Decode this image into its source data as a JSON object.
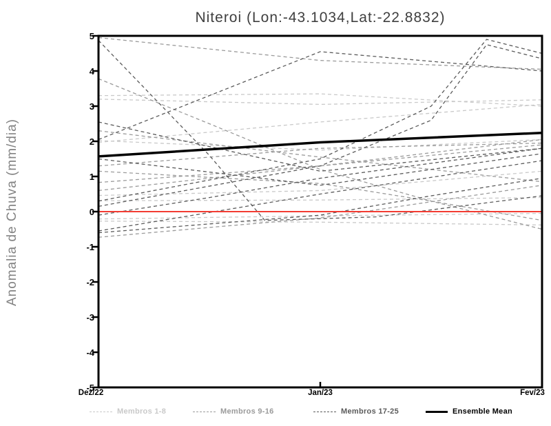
{
  "title": "Niteroi (Lon:-43.1034,Lat:-22.8832)",
  "y_axis": {
    "label": "Anomalia de Chuva (mm/dia)",
    "ticks": [
      "5",
      "4",
      "3",
      "2",
      "1",
      "0",
      "-1",
      "-2",
      "-3",
      "-4",
      "-5"
    ],
    "tick_values": [
      5,
      4,
      3,
      2,
      1,
      0,
      -1,
      -2,
      -3,
      -4,
      -5
    ]
  },
  "x_axis": {
    "ticks": [
      "Dez/22",
      "Jan/23",
      "Fev/23"
    ],
    "tick_positions_months": [
      0,
      1,
      2
    ]
  },
  "colors": {
    "frame": "#000000",
    "zero_line": "#f23b32",
    "mean": "#000000",
    "members_1_8": "#c9c9c9",
    "members_9_16": "#9a9a9a",
    "members_17_25": "#5a5a5a"
  },
  "legend": {
    "entries": [
      {
        "label": "Membros 1-8",
        "color": "#c9c9c9",
        "style": "dashed",
        "x": 130
      },
      {
        "label": "Membros 9-16",
        "color": "#9a9a9a",
        "style": "dashed",
        "x": 280
      },
      {
        "label": "Membros 17-25",
        "color": "#5a5a5a",
        "style": "dashed",
        "x": 455
      },
      {
        "label": "Ensemble Mean",
        "color": "#000000",
        "style": "solid",
        "x": 618
      }
    ]
  },
  "chart_data": {
    "type": "line",
    "title": "Niteroi (Lon:-43.1034,Lat:-22.8832)",
    "xlabel": "",
    "ylabel": "Anomalia de Chuva (mm/dia)",
    "ylim": [
      -5,
      5
    ],
    "x_categories": [
      "Dez/22",
      "Jan/23",
      "Fev/23"
    ],
    "x_unit": "months from Dez/22 (0=Dez/22, 1=Jan/23, 2=Fev/23)",
    "grid": false,
    "legend_position": "bottom",
    "zero_line": {
      "value": 0,
      "color": "#f23b32",
      "style": "solid"
    },
    "ensemble_mean": {
      "name": "Ensemble Mean",
      "color": "#000000",
      "style": "solid",
      "points": [
        [
          0,
          1.57
        ],
        [
          1,
          1.97
        ],
        [
          2,
          2.24
        ]
      ]
    },
    "groups": [
      {
        "name": "Membros 1-8",
        "color": "#c9c9c9",
        "style": "dashed",
        "members": [
          [
            [
              0,
              3.3
            ],
            [
              1,
              3.35
            ],
            [
              2,
              3.0
            ]
          ],
          [
            [
              0,
              3.2
            ],
            [
              1,
              3.05
            ],
            [
              2,
              3.18
            ]
          ],
          [
            [
              0,
              1.97
            ],
            [
              1,
              2.55
            ],
            [
              2,
              3.05
            ]
          ],
          [
            [
              0,
              2.02
            ],
            [
              1,
              1.75
            ],
            [
              2,
              2.05
            ]
          ],
          [
            [
              0,
              0.46
            ],
            [
              1,
              0.6
            ],
            [
              2,
              1.15
            ]
          ],
          [
            [
              0,
              0.31
            ],
            [
              1,
              0.33
            ],
            [
              2,
              0.4
            ]
          ],
          [
            [
              0,
              -0.21
            ],
            [
              1,
              -0.12
            ],
            [
              2,
              -0.05
            ]
          ],
          [
            [
              0,
              -0.27
            ],
            [
              1,
              -0.3
            ],
            [
              2,
              -0.38
            ]
          ]
        ]
      },
      {
        "name": "Membros 9-16",
        "color": "#9a9a9a",
        "style": "dashed",
        "members": [
          [
            [
              0,
              4.95
            ],
            [
              1,
              4.3
            ],
            [
              2,
              4.05
            ]
          ],
          [
            [
              0,
              3.78
            ],
            [
              0.5,
              2.5
            ],
            [
              1,
              1.2
            ],
            [
              1.5,
              0.3
            ],
            [
              2,
              -0.5
            ]
          ],
          [
            [
              0,
              2.3
            ],
            [
              1,
              1.55
            ],
            [
              2,
              0.85
            ]
          ],
          [
            [
              0,
              1.3
            ],
            [
              1,
              1.8
            ],
            [
              2,
              1.95
            ]
          ],
          [
            [
              0,
              1.15
            ],
            [
              1,
              0.8
            ],
            [
              1.5,
              0.3
            ],
            [
              2,
              -0.25
            ]
          ],
          [
            [
              0,
              0.83
            ],
            [
              1,
              1.3
            ],
            [
              2,
              1.9
            ]
          ],
          [
            [
              0,
              0.6
            ],
            [
              1,
              1.3
            ],
            [
              2,
              2.05
            ]
          ],
          [
            [
              0,
              -0.73
            ],
            [
              0.5,
              -0.45
            ],
            [
              1,
              -0.18
            ],
            [
              1.2,
              0.0
            ],
            [
              2,
              0.75
            ]
          ]
        ]
      },
      {
        "name": "Membros 17-25",
        "color": "#5a5a5a",
        "style": "dashed",
        "members": [
          [
            [
              0,
              4.87
            ],
            [
              0.5,
              1.6
            ],
            [
              0.75,
              -0.25
            ],
            [
              1.25,
              -0.15
            ],
            [
              2,
              0.45
            ]
          ],
          [
            [
              0,
              2.05
            ],
            [
              1,
              4.55
            ],
            [
              2,
              4.0
            ]
          ],
          [
            [
              0,
              2.55
            ],
            [
              1,
              1.15
            ],
            [
              2,
              1.8
            ]
          ],
          [
            [
              0,
              0.3
            ],
            [
              1,
              1.5
            ],
            [
              1.5,
              3.0
            ],
            [
              1.75,
              4.9
            ],
            [
              2,
              4.5
            ]
          ],
          [
            [
              0,
              0.15
            ],
            [
              1,
              1.3
            ],
            [
              1.5,
              2.6
            ],
            [
              1.75,
              4.75
            ],
            [
              2,
              4.35
            ]
          ],
          [
            [
              0,
              1.5
            ],
            [
              1,
              0.75
            ],
            [
              2,
              1.65
            ]
          ],
          [
            [
              0,
              -0.1
            ],
            [
              0.5,
              0.4
            ],
            [
              1,
              0.95
            ],
            [
              2,
              1.8
            ]
          ],
          [
            [
              0,
              -0.55
            ],
            [
              1,
              0.5
            ],
            [
              2,
              1.45
            ]
          ],
          [
            [
              0,
              -0.6
            ],
            [
              1,
              -0.1
            ],
            [
              1.5,
              0.45
            ],
            [
              2,
              0.95
            ]
          ]
        ]
      }
    ]
  }
}
